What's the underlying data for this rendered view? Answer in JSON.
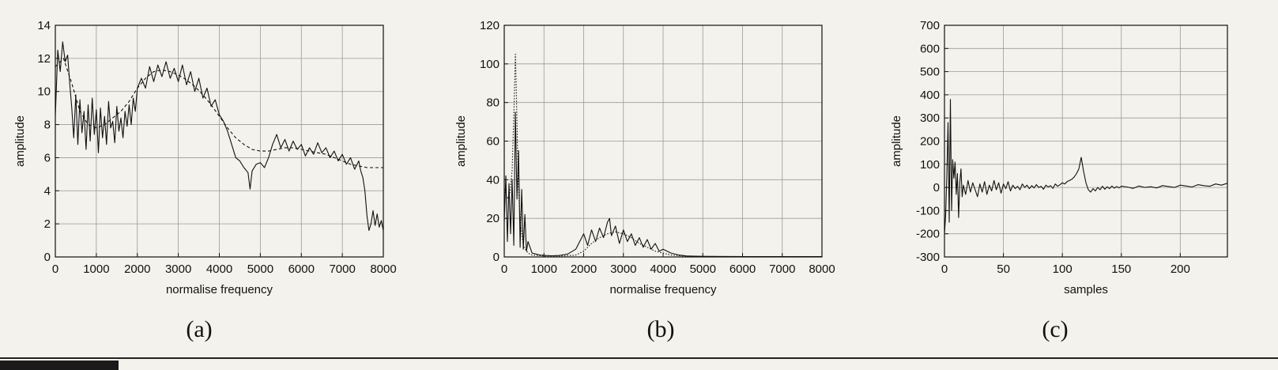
{
  "figure": {
    "panels": [
      {
        "id": "a",
        "label": "(a)",
        "xlabel": "normalise frequency",
        "ylabel": "amplitude",
        "xlim": [
          0,
          8000
        ],
        "ylim": [
          0,
          14
        ],
        "xticks": [
          0,
          1000,
          2000,
          3000,
          4000,
          5000,
          6000,
          7000,
          8000
        ],
        "yticks": [
          0,
          2,
          4,
          6,
          8,
          10,
          12,
          14
        ]
      },
      {
        "id": "b",
        "label": "(b)",
        "xlabel": "normalise frequency",
        "ylabel": "amplitude",
        "xlim": [
          0,
          8000
        ],
        "ylim": [
          0,
          120
        ],
        "xticks": [
          0,
          1000,
          2000,
          3000,
          4000,
          5000,
          6000,
          7000,
          8000
        ],
        "yticks": [
          0,
          20,
          40,
          60,
          80,
          100,
          120
        ]
      },
      {
        "id": "c",
        "label": "(c)",
        "xlabel": "samples",
        "ylabel": "amplitude",
        "xlim": [
          0,
          240
        ],
        "ylim": [
          -300,
          700
        ],
        "xticks": [
          0,
          50,
          100,
          150,
          200
        ],
        "yticks": [
          -300,
          -200,
          -100,
          0,
          100,
          200,
          300,
          400,
          500,
          600,
          700
        ]
      }
    ]
  },
  "chart_data": [
    {
      "type": "line",
      "xlabel": "normalise frequency",
      "ylabel": "amplitude",
      "xlim": [
        0,
        8000
      ],
      "ylim": [
        0,
        14
      ],
      "grid": true,
      "series": [
        {
          "style": "solid",
          "color": "#111111",
          "x": [
            0,
            60,
            120,
            180,
            240,
            300,
            350,
            400,
            450,
            500,
            550,
            600,
            650,
            700,
            750,
            800,
            850,
            900,
            950,
            1000,
            1050,
            1100,
            1150,
            1200,
            1250,
            1300,
            1350,
            1400,
            1450,
            1500,
            1550,
            1600,
            1650,
            1700,
            1750,
            1800,
            1850,
            1900,
            1950,
            2000,
            2100,
            2200,
            2300,
            2400,
            2500,
            2600,
            2700,
            2800,
            2900,
            3000,
            3100,
            3200,
            3300,
            3400,
            3500,
            3600,
            3700,
            3800,
            3900,
            4000,
            4100,
            4200,
            4300,
            4400,
            4500,
            4600,
            4700,
            4750,
            4800,
            4900,
            5000,
            5100,
            5200,
            5300,
            5400,
            5500,
            5600,
            5700,
            5800,
            5900,
            6000,
            6100,
            6200,
            6300,
            6400,
            6500,
            6600,
            6700,
            6800,
            6900,
            7000,
            7100,
            7200,
            7300,
            7400,
            7450,
            7500,
            7550,
            7600,
            7650,
            7700,
            7750,
            7800,
            7850,
            7900,
            7950,
            8000
          ],
          "y": [
            8.5,
            12.5,
            11.2,
            13.0,
            11.8,
            12.2,
            10.5,
            9.0,
            7.2,
            9.8,
            6.8,
            9.5,
            7.5,
            8.8,
            6.5,
            9.2,
            7.0,
            9.6,
            7.4,
            8.9,
            6.3,
            9.0,
            7.2,
            8.5,
            6.8,
            9.4,
            7.8,
            8.2,
            6.9,
            9.1,
            7.6,
            8.4,
            7.2,
            8.8,
            7.9,
            9.2,
            8.0,
            9.6,
            8.8,
            10.2,
            10.8,
            10.2,
            11.5,
            10.6,
            11.6,
            10.9,
            11.8,
            10.8,
            11.4,
            10.6,
            11.6,
            10.4,
            11.2,
            10.0,
            10.8,
            9.6,
            10.2,
            9.1,
            9.5,
            8.6,
            8.2,
            7.6,
            6.8,
            6.0,
            5.8,
            5.4,
            5.1,
            4.1,
            5.2,
            5.6,
            5.7,
            5.4,
            6.0,
            6.8,
            7.4,
            6.6,
            7.1,
            6.4,
            7.0,
            6.5,
            6.8,
            6.1,
            6.6,
            6.2,
            6.9,
            6.3,
            6.6,
            6.0,
            6.4,
            5.8,
            6.2,
            5.6,
            6.0,
            5.3,
            5.8,
            5.2,
            4.8,
            4.0,
            2.5,
            1.6,
            2.0,
            2.8,
            1.9,
            2.6,
            1.8,
            2.2,
            1.6
          ]
        },
        {
          "style": "dashed",
          "color": "#111111",
          "x": [
            0,
            200,
            400,
            600,
            800,
            1000,
            1200,
            1400,
            1600,
            1800,
            2000,
            2200,
            2400,
            2600,
            2800,
            3000,
            3200,
            3400,
            3600,
            3800,
            4000,
            4200,
            4400,
            4600,
            4800,
            5000,
            5200,
            5400,
            5600,
            5800,
            6000,
            6200,
            6400,
            6600,
            6800,
            7000,
            7200,
            7400,
            7600,
            7800,
            8000
          ],
          "y": [
            11.5,
            12.0,
            10.5,
            8.8,
            8.0,
            7.8,
            8.0,
            8.4,
            8.8,
            9.4,
            10.2,
            10.8,
            11.2,
            11.3,
            11.2,
            11.0,
            10.7,
            10.3,
            9.8,
            9.2,
            8.5,
            7.8,
            7.2,
            6.8,
            6.5,
            6.4,
            6.4,
            6.5,
            6.6,
            6.6,
            6.5,
            6.4,
            6.3,
            6.2,
            6.0,
            5.8,
            5.6,
            5.5,
            5.4,
            5.4,
            5.4
          ]
        }
      ]
    },
    {
      "type": "line",
      "xlabel": "normalise frequency",
      "ylabel": "amplitude",
      "xlim": [
        0,
        8000
      ],
      "ylim": [
        0,
        120
      ],
      "grid": true,
      "series": [
        {
          "style": "solid",
          "color": "#111111",
          "x": [
            0,
            40,
            80,
            120,
            160,
            200,
            240,
            280,
            320,
            360,
            400,
            440,
            480,
            520,
            560,
            600,
            700,
            800,
            900,
            1000,
            1200,
            1400,
            1600,
            1800,
            1900,
            2000,
            2100,
            2200,
            2300,
            2400,
            2500,
            2600,
            2650,
            2700,
            2800,
            2900,
            3000,
            3100,
            3200,
            3300,
            3400,
            3500,
            3600,
            3700,
            3800,
            3900,
            4000,
            4200,
            4400,
            4600,
            5000,
            6000,
            7000,
            8000
          ],
          "y": [
            18,
            42,
            8,
            38,
            12,
            40,
            6,
            75,
            30,
            55,
            5,
            35,
            4,
            22,
            3,
            8,
            2,
            1.5,
            1,
            0.8,
            0.6,
            0.8,
            1.5,
            4,
            8,
            12,
            6,
            14,
            8,
            15,
            10,
            18,
            20,
            11,
            16,
            7,
            14,
            8,
            12,
            6,
            10,
            5,
            9,
            4,
            7,
            3,
            4,
            2,
            1,
            0.5,
            0.3,
            0.2,
            0.2,
            0.2
          ]
        },
        {
          "style": "dotted",
          "color": "#111111",
          "x": [
            0,
            50,
            100,
            150,
            200,
            250,
            280,
            300,
            330,
            360,
            400,
            450,
            500,
            600,
            700,
            800,
            1000,
            1500,
            1800,
            2000,
            2200,
            2400,
            2600,
            2800,
            3000,
            3200,
            3400,
            3600,
            3800,
            4000,
            4200,
            4500,
            5000,
            6000,
            8000
          ],
          "y": [
            35,
            32,
            30,
            34,
            45,
            80,
            105,
            90,
            60,
            35,
            20,
            10,
            5,
            2,
            1,
            0.8,
            0.5,
            0.5,
            1,
            3,
            7,
            10,
            12,
            13,
            12,
            10,
            7,
            5,
            3,
            2,
            1,
            0.5,
            0.3,
            0.2,
            0.2
          ]
        }
      ]
    },
    {
      "type": "line",
      "xlabel": "samples",
      "ylabel": "amplitude",
      "xlim": [
        0,
        240
      ],
      "ylim": [
        -300,
        700
      ],
      "grid": true,
      "series": [
        {
          "style": "solid",
          "color": "#111111",
          "x": [
            0,
            1,
            2,
            3,
            4,
            5,
            6,
            7,
            8,
            9,
            10,
            11,
            12,
            13,
            14,
            15,
            16,
            18,
            20,
            22,
            24,
            26,
            28,
            30,
            32,
            34,
            36,
            38,
            40,
            42,
            44,
            46,
            48,
            50,
            52,
            54,
            56,
            58,
            60,
            62,
            64,
            66,
            68,
            70,
            72,
            74,
            76,
            78,
            80,
            82,
            84,
            86,
            88,
            90,
            92,
            94,
            96,
            98,
            100,
            102,
            104,
            106,
            108,
            110,
            112,
            114,
            116,
            118,
            120,
            122,
            124,
            126,
            128,
            130,
            132,
            134,
            136,
            138,
            140,
            142,
            144,
            146,
            148,
            150,
            155,
            160,
            165,
            170,
            175,
            180,
            185,
            190,
            195,
            200,
            205,
            210,
            215,
            220,
            225,
            230,
            235,
            240
          ],
          "y": [
            -200,
            -120,
            50,
            280,
            -150,
            380,
            -100,
            120,
            40,
            110,
            -30,
            60,
            -130,
            20,
            80,
            -40,
            10,
            -30,
            30,
            -20,
            20,
            -10,
            -40,
            15,
            -20,
            25,
            -30,
            10,
            -15,
            30,
            -10,
            20,
            -25,
            15,
            -5,
            25,
            -15,
            10,
            -5,
            5,
            -10,
            15,
            0,
            10,
            -5,
            8,
            -2,
            12,
            0,
            5,
            -8,
            10,
            2,
            8,
            -4,
            15,
            5,
            12,
            20,
            15,
            25,
            30,
            35,
            45,
            60,
            80,
            130,
            70,
            20,
            -10,
            -20,
            -5,
            -15,
            0,
            -10,
            5,
            -8,
            3,
            -5,
            6,
            -3,
            4,
            -2,
            5,
            2,
            -4,
            6,
            0,
            3,
            -2,
            8,
            4,
            0,
            10,
            6,
            2,
            12,
            8,
            5,
            15,
            10,
            18
          ]
        }
      ]
    }
  ]
}
